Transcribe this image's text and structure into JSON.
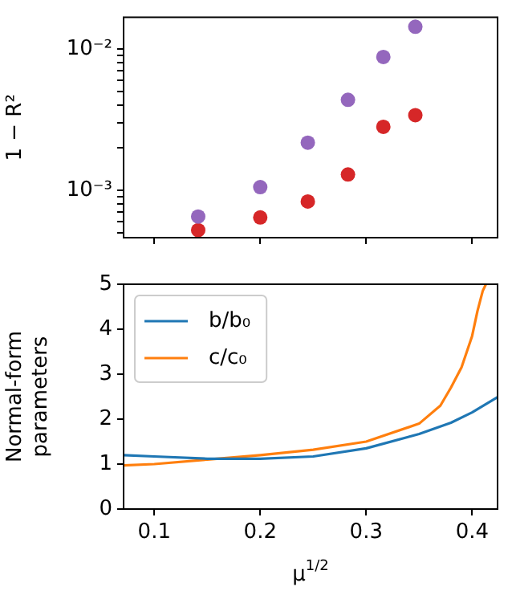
{
  "chart_data": [
    {
      "type": "scatter",
      "ylabel": "1 − R²",
      "x": [
        0.1414,
        0.2,
        0.2449,
        0.2828,
        0.3162,
        0.3464
      ],
      "series": [
        {
          "color": "#9467bd",
          "values": [
            0.00065,
            0.00105,
            0.00217,
            0.00437,
            0.0088,
            0.0144
          ]
        },
        {
          "color": "#d62728",
          "values": [
            0.00052,
            0.00064,
            0.00083,
            0.00129,
            0.00281,
            0.0034
          ]
        }
      ],
      "log": "y",
      "xlim": [
        0.071,
        0.424
      ],
      "xticks": [
        0.1,
        0.2,
        0.3,
        0.4
      ],
      "ylim": [
        0.00046,
        0.0168
      ],
      "yticks": [
        {
          "value": 0.0005,
          "label": null
        },
        {
          "value": 0.0006,
          "label": null
        },
        {
          "value": 0.0007,
          "label": null
        },
        {
          "value": 0.0008,
          "label": null
        },
        {
          "value": 0.0009,
          "label": null
        },
        {
          "value": 0.001,
          "label": "10⁻³"
        },
        {
          "value": 0.002,
          "label": null
        },
        {
          "value": 0.003,
          "label": null
        },
        {
          "value": 0.004,
          "label": null
        },
        {
          "value": 0.005,
          "label": null
        },
        {
          "value": 0.006,
          "label": null
        },
        {
          "value": 0.007,
          "label": null
        },
        {
          "value": 0.008,
          "label": null
        },
        {
          "value": 0.009,
          "label": null
        },
        {
          "value": 0.01,
          "label": "10⁻²"
        }
      ],
      "tick_labels": "y",
      "grid": false,
      "legend": false,
      "marker": "circle"
    },
    {
      "type": "line",
      "xlabel": "μ$^{1/2}$",
      "ylabel": "Normal-form parameters",
      "series": [
        {
          "name": "b/b₀",
          "color": "#1f77b4",
          "x": [
            0.071,
            0.1,
            0.15,
            0.2,
            0.25,
            0.3,
            0.35,
            0.38,
            0.4,
            0.424
          ],
          "values": [
            1.2,
            1.17,
            1.12,
            1.12,
            1.17,
            1.35,
            1.67,
            1.92,
            2.15,
            2.49
          ]
        },
        {
          "name": "c/c₀",
          "color": "#ff7f0e",
          "x": [
            0.071,
            0.1,
            0.15,
            0.2,
            0.25,
            0.3,
            0.35,
            0.37,
            0.38,
            0.39,
            0.4,
            0.405,
            0.41,
            0.413
          ],
          "values": [
            0.97,
            1.0,
            1.1,
            1.2,
            1.32,
            1.5,
            1.9,
            2.3,
            2.7,
            3.15,
            3.85,
            4.4,
            4.85,
            5.0
          ]
        }
      ],
      "xlim": [
        0.071,
        0.424
      ],
      "xticks": [
        0.1,
        0.2,
        0.3,
        0.4
      ],
      "ylim": [
        0,
        5
      ],
      "yticks": [
        0,
        1,
        2,
        3,
        4,
        5
      ],
      "grid": false,
      "legend": "upper left",
      "marker": "none",
      "line_style": "solid"
    }
  ]
}
